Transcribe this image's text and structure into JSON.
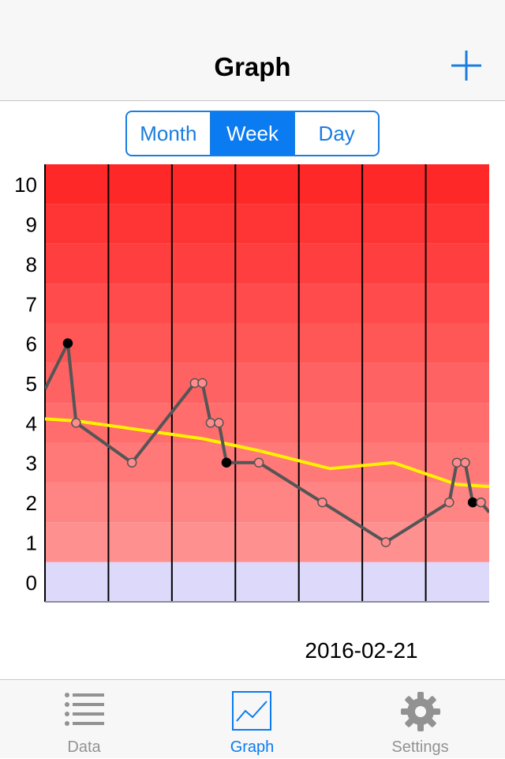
{
  "navbar": {
    "title": "Graph",
    "add_icon": "plus-icon",
    "accent": "#1a7de0"
  },
  "segmented": {
    "options": [
      "Month",
      "Week",
      "Day"
    ],
    "selected": "Week"
  },
  "chart_data": {
    "type": "line",
    "ylim": [
      0,
      10
    ],
    "y_ticks": [
      "0",
      "1",
      "2",
      "3",
      "4",
      "5",
      "6",
      "7",
      "8",
      "9",
      "10"
    ],
    "grid": "vertical lines, 7 day columns",
    "xlim": [
      0,
      7
    ],
    "x_unit": "days",
    "background_bands": {
      "safe_color": "#dcd9fa",
      "alert_colors": [
        "#ff9090",
        "#ff2828"
      ]
    },
    "series": [
      {
        "color": "#555555",
        "marker_fill_open": "#ff8b8b",
        "marker_fill_closed": "#000000",
        "points": [
          {
            "x": 0.0,
            "y": 4.85,
            "marker": "none"
          },
          {
            "x": 0.36,
            "y": 6,
            "marker": "closed"
          },
          {
            "x": 0.49,
            "y": 4,
            "marker": "open"
          },
          {
            "x": 1.37,
            "y": 3,
            "marker": "open"
          },
          {
            "x": 2.36,
            "y": 5,
            "marker": "open"
          },
          {
            "x": 2.48,
            "y": 5,
            "marker": "open"
          },
          {
            "x": 2.61,
            "y": 4,
            "marker": "open"
          },
          {
            "x": 2.74,
            "y": 4,
            "marker": "open"
          },
          {
            "x": 2.86,
            "y": 3,
            "marker": "closed"
          },
          {
            "x": 3.37,
            "y": 3,
            "marker": "open"
          },
          {
            "x": 4.37,
            "y": 2,
            "marker": "open"
          },
          {
            "x": 5.37,
            "y": 1,
            "marker": "open"
          },
          {
            "x": 6.37,
            "y": 2,
            "marker": "open"
          },
          {
            "x": 6.49,
            "y": 3,
            "marker": "open"
          },
          {
            "x": 6.62,
            "y": 3,
            "marker": "open"
          },
          {
            "x": 6.74,
            "y": 2,
            "marker": "closed"
          },
          {
            "x": 6.87,
            "y": 2,
            "marker": "open"
          },
          {
            "x": 7.0,
            "y": 1.75,
            "marker": "none"
          }
        ]
      },
      {
        "color": "#fff200",
        "points": [
          {
            "x": 0.0,
            "y": 4.1
          },
          {
            "x": 0.49,
            "y": 4.05
          },
          {
            "x": 2.49,
            "y": 3.6
          },
          {
            "x": 3.37,
            "y": 3.3
          },
          {
            "x": 4.49,
            "y": 2.85
          },
          {
            "x": 5.49,
            "y": 3.0
          },
          {
            "x": 6.49,
            "y": 2.45
          },
          {
            "x": 7.0,
            "y": 2.4
          }
        ]
      }
    ]
  },
  "date_label": "2016-02-21",
  "tabbar": {
    "items": [
      {
        "label": "Data",
        "icon": "list-icon",
        "active": false
      },
      {
        "label": "Graph",
        "icon": "graph-icon",
        "active": true
      },
      {
        "label": "Settings",
        "icon": "gear-icon",
        "active": false
      }
    ],
    "active_color": "#0a7bf0",
    "inactive_color": "#929292"
  }
}
